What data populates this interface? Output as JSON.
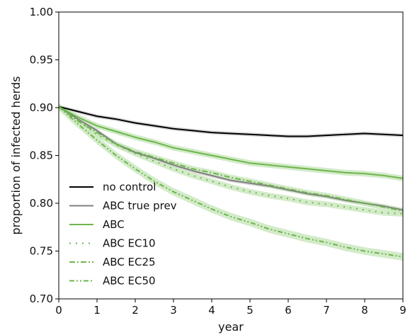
{
  "chart_data": {
    "type": "line",
    "title": "",
    "xlabel": "year",
    "ylabel": "proportion of infected herds",
    "xlim": [
      0,
      9
    ],
    "ylim": [
      0.7,
      1.0
    ],
    "x_ticks": [
      "0",
      "1",
      "2",
      "3",
      "4",
      "5",
      "6",
      "7",
      "8",
      "9"
    ],
    "y_ticks": [
      "0.70",
      "0.75",
      "0.80",
      "0.85",
      "0.90",
      "0.95",
      "1.00"
    ],
    "grid": false,
    "legend_position": "lower-left",
    "x": [
      0,
      0.5,
      1,
      1.5,
      2,
      2.5,
      3,
      3.5,
      4,
      4.5,
      5,
      5.5,
      6,
      6.5,
      7,
      7.5,
      8,
      8.5,
      9
    ],
    "series": [
      {
        "name": "no control",
        "color": "#000000",
        "dash": "solid",
        "values": [
          0.901,
          0.896,
          0.891,
          0.888,
          0.884,
          0.881,
          0.878,
          0.876,
          0.874,
          0.873,
          0.872,
          0.871,
          0.87,
          0.87,
          0.871,
          0.872,
          0.873,
          0.872,
          0.871
        ],
        "band": 0.002
      },
      {
        "name": "ABC true prev",
        "color": "#808080",
        "dash": "solid",
        "values": [
          0.901,
          0.888,
          0.876,
          0.862,
          0.853,
          0.847,
          0.84,
          0.834,
          0.829,
          0.824,
          0.821,
          0.818,
          0.814,
          0.81,
          0.807,
          0.803,
          0.8,
          0.797,
          0.793
        ],
        "band": 0.002
      },
      {
        "name": "ABC",
        "color": "#6db54c",
        "dash": "solid",
        "values": [
          0.901,
          0.89,
          0.881,
          0.875,
          0.869,
          0.864,
          0.858,
          0.854,
          0.85,
          0.846,
          0.842,
          0.84,
          0.838,
          0.836,
          0.834,
          0.832,
          0.831,
          0.829,
          0.826
        ],
        "band": 0.003
      },
      {
        "name": "ABC EC10",
        "color": "#6db54c",
        "dash": "2 7",
        "values": [
          0.901,
          0.887,
          0.872,
          0.861,
          0.852,
          0.844,
          0.836,
          0.829,
          0.823,
          0.817,
          0.812,
          0.808,
          0.805,
          0.801,
          0.799,
          0.796,
          0.793,
          0.79,
          0.789
        ],
        "band": 0.003
      },
      {
        "name": "ABC EC25",
        "color": "#6db54c",
        "dash": "8 3 2 3",
        "values": [
          0.901,
          0.886,
          0.874,
          0.862,
          0.854,
          0.848,
          0.842,
          0.836,
          0.832,
          0.827,
          0.823,
          0.819,
          0.815,
          0.811,
          0.808,
          0.804,
          0.8,
          0.796,
          0.792
        ],
        "band": 0.003
      },
      {
        "name": "ABC EC50",
        "color": "#6db54c",
        "dash": "7 3 2 3 2 3",
        "values": [
          0.901,
          0.883,
          0.866,
          0.85,
          0.836,
          0.823,
          0.812,
          0.803,
          0.794,
          0.786,
          0.78,
          0.773,
          0.768,
          0.763,
          0.759,
          0.754,
          0.75,
          0.747,
          0.744
        ],
        "band": 0.004
      }
    ],
    "band_color": "#c8e6bc"
  }
}
